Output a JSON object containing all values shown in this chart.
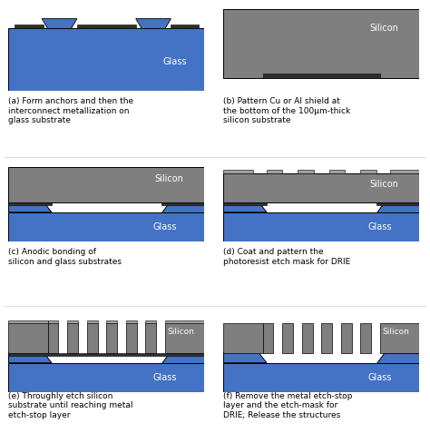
{
  "fig_width": 4.74,
  "fig_height": 4.88,
  "dpi": 100,
  "bg_color": "#ffffff",
  "glass_color": "#4472C4",
  "silicon_color": "#7f7f7f",
  "metal_color": "#2f2f2f",
  "pr_color": "#a0a0a0",
  "panels": [
    {
      "label": "(a) Form anchors and then the\ninterconnect metallization on\nglass substrate",
      "col": 0,
      "row": 0
    },
    {
      "label": "(b) Pattern Cu or Al shield at\nthe bottom of the 100μm-thick\nsilicon substrate",
      "col": 1,
      "row": 0
    },
    {
      "label": "(c) Anodic bonding of\nsilicon and glass substrates",
      "col": 0,
      "row": 1
    },
    {
      "label": "(d) Coat and pattern the\nphotoresist etch mask for DRIE",
      "col": 1,
      "row": 1
    },
    {
      "label": "(e) Throughly etch silicon\nsubstrate until reaching metal\netch-stop layer",
      "col": 0,
      "row": 2
    },
    {
      "label": "(f) Remove the metal etch-stop\nlayer and the etch-mask for\nDRIE; Release the structures",
      "col": 1,
      "row": 2
    }
  ]
}
